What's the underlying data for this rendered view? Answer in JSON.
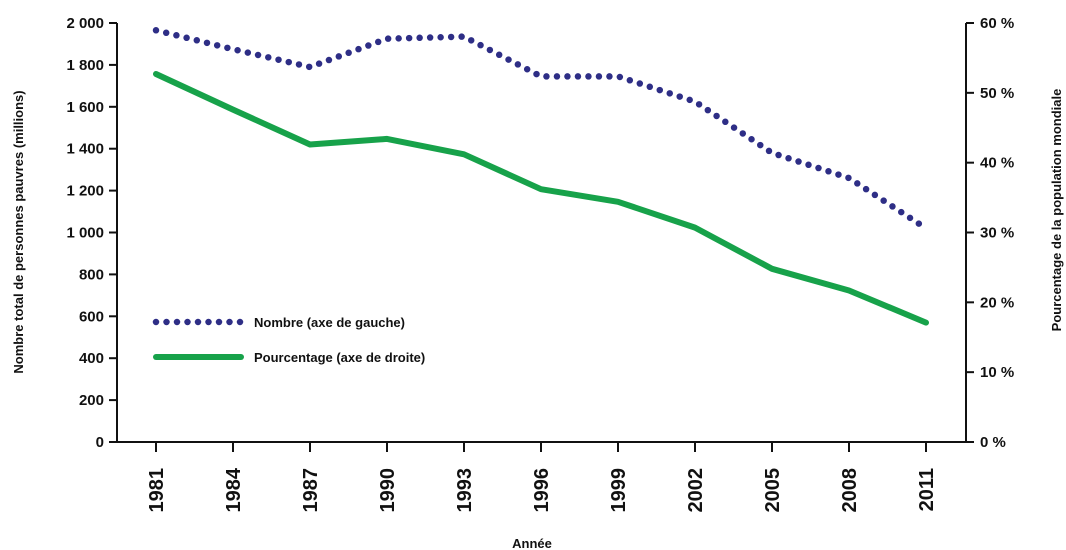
{
  "chart_data": {
    "type": "line",
    "title": "",
    "xlabel": "Année",
    "ylabel_left": "Nombre total de personnes pauvres (millions)",
    "ylabel_right": "Pourcentage de la population mondiale",
    "categories": [
      "1981",
      "1984",
      "1987",
      "1990",
      "1993",
      "1996",
      "1999",
      "2002",
      "2005",
      "2008",
      "2011"
    ],
    "ylim_left": [
      0,
      2000
    ],
    "yticks_left": [
      "0",
      "200",
      "400",
      "600",
      "800",
      "1 000",
      "1 200",
      "1 400",
      "1 600",
      "1 800",
      "2 000"
    ],
    "ylim_right": [
      0,
      60
    ],
    "yticks_right": [
      "0 %",
      "10 %",
      "20 %",
      "30 %",
      "40 %",
      "50 %",
      "60 %"
    ],
    "grid": false,
    "legend_position": "left",
    "series": [
      {
        "name": "Nombre (axe de gauche)",
        "axis": "left",
        "style": "dotted",
        "color": "#2e2e86",
        "values": [
          1965,
          1875,
          1790,
          1925,
          1935,
          1745,
          1745,
          1625,
          1380,
          1260,
          1020
        ]
      },
      {
        "name": "Pourcentage (axe de droite)",
        "axis": "right",
        "style": "solid",
        "color": "#17a24a",
        "values": [
          52.7,
          47.6,
          42.6,
          43.4,
          41.2,
          36.2,
          34.4,
          30.7,
          24.8,
          21.7,
          17.1
        ]
      }
    ]
  }
}
